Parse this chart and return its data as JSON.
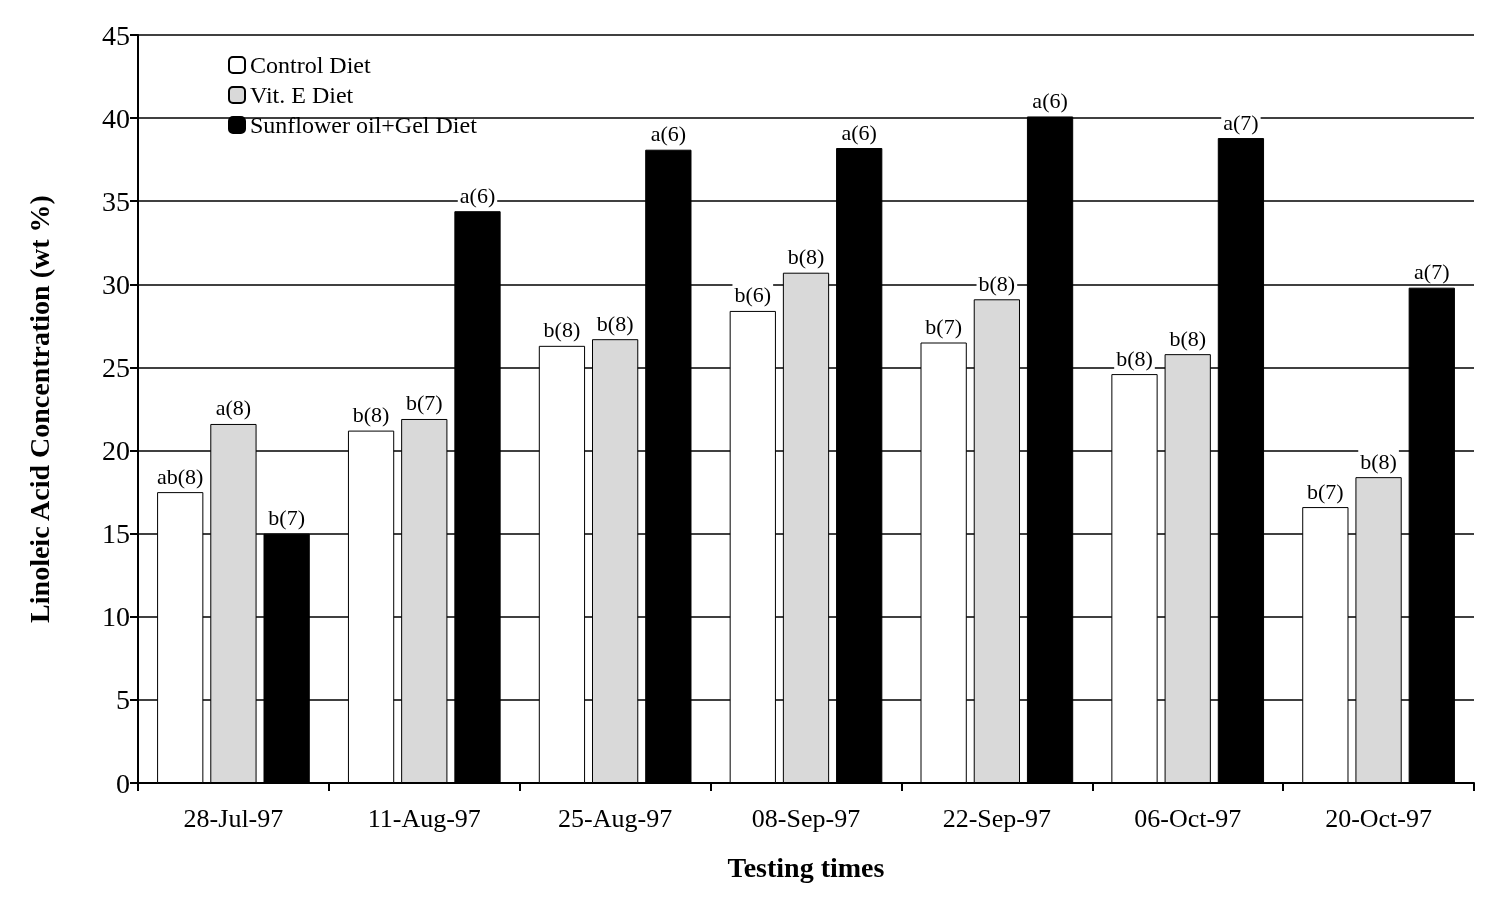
{
  "chart_data": {
    "type": "bar",
    "xlabel": "Testing times",
    "ylabel": "Linoleic Acid Concentration (wt %)",
    "categories": [
      "28-Jul-97",
      "11-Aug-97",
      "25-Aug-97",
      "08-Sep-97",
      "22-Sep-97",
      "06-Oct-97",
      "20-Oct-97"
    ],
    "series": [
      {
        "name": "Control Diet",
        "color": "#ffffff",
        "values": [
          17.5,
          21.2,
          26.3,
          28.4,
          26.5,
          24.6,
          16.6
        ],
        "value_labels": [
          "ab(8)",
          "b(8)",
          "b(8)",
          "b(6)",
          "b(7)",
          "b(8)",
          "b(7)"
        ]
      },
      {
        "name": "Vit. E Diet",
        "color": "#d9d9d9",
        "values": [
          21.6,
          21.9,
          26.7,
          30.7,
          29.1,
          25.8,
          18.4
        ],
        "value_labels": [
          "a(8)",
          "b(7)",
          "b(8)",
          "b(8)",
          "b(8)",
          "b(8)",
          "b(8)"
        ]
      },
      {
        "name": "Sunflower oil+Gel Diet",
        "color": "#000000",
        "values": [
          15.0,
          34.4,
          38.1,
          38.2,
          40.1,
          38.8,
          29.8
        ],
        "value_labels": [
          "b(7)",
          "a(6)",
          "a(6)",
          "a(6)",
          "a(6)",
          "a(7)",
          "a(7)"
        ]
      }
    ],
    "ylim": [
      0,
      45
    ],
    "yticks": [
      0,
      5,
      10,
      15,
      20,
      25,
      30,
      35,
      40,
      45
    ],
    "grid": "y",
    "legend": "top left"
  }
}
